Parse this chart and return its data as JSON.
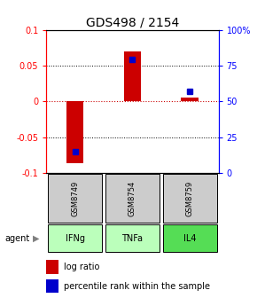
{
  "title": "GDS498 / 2154",
  "samples": [
    "GSM8749",
    "GSM8754",
    "GSM8759"
  ],
  "agents": [
    "IFNg",
    "TNFa",
    "IL4"
  ],
  "log_ratios": [
    -0.087,
    0.07,
    0.005
  ],
  "percentile_ranks": [
    15,
    79,
    57
  ],
  "ylim": [
    -0.1,
    0.1
  ],
  "yticks_left": [
    -0.1,
    -0.05,
    0,
    0.05,
    0.1
  ],
  "yticks_right": [
    0,
    25,
    50,
    75,
    100
  ],
  "bar_color": "#cc0000",
  "dot_color": "#0000cc",
  "zero_line_color": "#cc0000",
  "agent_colors": [
    "#bbffbb",
    "#bbffbb",
    "#55dd55"
  ],
  "sample_bg_color": "#cccccc",
  "title_fontsize": 10,
  "tick_fontsize": 7,
  "label_fontsize": 7.5,
  "legend_fontsize": 7
}
